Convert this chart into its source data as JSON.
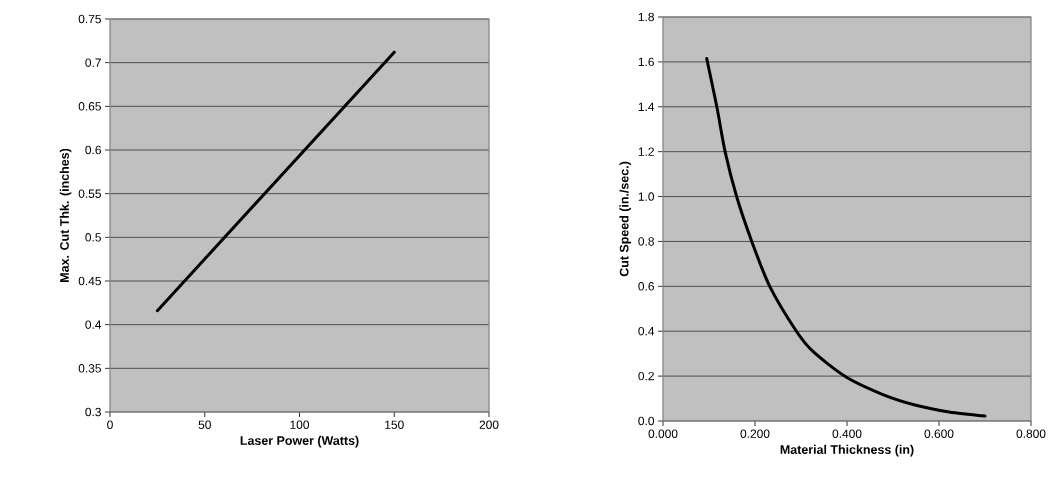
{
  "chart_data": [
    {
      "type": "line",
      "xlabel": "Laser Power (Watts)",
      "ylabel": "Max. Cut Thk. (inches)",
      "xlim": [
        0,
        200
      ],
      "ylim": [
        0.3,
        0.75
      ],
      "xticks": [
        0,
        50,
        100,
        150,
        200
      ],
      "yticks": [
        0.3,
        0.35,
        0.4,
        0.45,
        0.5,
        0.55,
        0.6,
        0.65,
        0.7,
        0.75
      ],
      "grid": "y",
      "series": [
        {
          "color": "#000000",
          "x": [
            25,
            150
          ],
          "values": [
            0.416,
            0.712
          ]
        }
      ]
    },
    {
      "type": "line",
      "xlabel": "Material Thickness (in)",
      "ylabel": "Cut Speed (in./sec.)",
      "xlim": [
        0,
        0.8
      ],
      "ylim": [
        0,
        1.8
      ],
      "xticks": [
        {
          "value": 0,
          "label": "0.000"
        },
        {
          "value": 0.2,
          "label": "0.200"
        },
        {
          "value": 0.4,
          "label": "0.400"
        },
        {
          "value": 0.6,
          "label": "0.600"
        },
        {
          "value": 0.8,
          "label": "0.800"
        }
      ],
      "yticks": [
        {
          "value": 0,
          "label": "0.0"
        },
        {
          "value": 0.2,
          "label": "0.2"
        },
        {
          "value": 0.4,
          "label": "0.4"
        },
        {
          "value": 0.6,
          "label": "0.6"
        },
        {
          "value": 0.8,
          "label": "0.8"
        },
        {
          "value": 1.0,
          "label": "1.0"
        },
        {
          "value": 1.2,
          "label": "1.2"
        },
        {
          "value": 1.4,
          "label": "1.4"
        },
        {
          "value": 1.6,
          "label": "1.6"
        },
        {
          "value": 1.8,
          "label": "1.8"
        }
      ],
      "grid": "y",
      "series": [
        {
          "color": "#000000",
          "x": [
            0.095,
            0.117,
            0.135,
            0.16,
            0.193,
            0.232,
            0.29,
            0.326,
            0.398,
            0.478,
            0.55,
            0.622,
            0.7
          ],
          "values": [
            1.615,
            1.4,
            1.2,
            1.0,
            0.8,
            0.6,
            0.4,
            0.31,
            0.196,
            0.118,
            0.07,
            0.04,
            0.022
          ]
        }
      ]
    }
  ]
}
